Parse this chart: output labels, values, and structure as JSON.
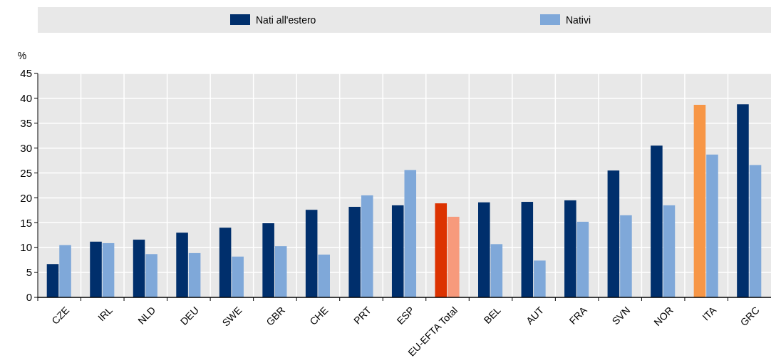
{
  "chart_data": {
    "type": "bar",
    "ylabel": "%",
    "categories": [
      "CZE",
      "IRL",
      "NLD",
      "DEU",
      "SWE",
      "GBR",
      "CHE",
      "PRT",
      "ESP",
      "EU-EFTA Total",
      "BEL",
      "AUT",
      "FRA",
      "SVN",
      "NOR",
      "ITA",
      "GRC"
    ],
    "series": [
      {
        "name": "Nati all'estero",
        "color": "#002f6c",
        "colors": [
          "#002f6c",
          "#002f6c",
          "#002f6c",
          "#002f6c",
          "#002f6c",
          "#002f6c",
          "#002f6c",
          "#002f6c",
          "#002f6c",
          "#dc3200",
          "#002f6c",
          "#002f6c",
          "#002f6c",
          "#002f6c",
          "#002f6c",
          "#f79646",
          "#002f6c"
        ],
        "values": [
          6.7,
          11.2,
          11.6,
          13.0,
          14.0,
          14.9,
          17.6,
          18.2,
          18.5,
          18.9,
          19.1,
          19.2,
          19.5,
          25.5,
          30.5,
          38.7,
          38.8
        ]
      },
      {
        "name": "Nativi",
        "color": "#7fa8d9",
        "colors": [
          "#7fa8d9",
          "#7fa8d9",
          "#7fa8d9",
          "#7fa8d9",
          "#7fa8d9",
          "#7fa8d9",
          "#7fa8d9",
          "#7fa8d9",
          "#7fa8d9",
          "#f79a7c",
          "#7fa8d9",
          "#7fa8d9",
          "#7fa8d9",
          "#7fa8d9",
          "#7fa8d9",
          "#7fa8d9",
          "#7fa8d9"
        ],
        "values": [
          10.5,
          10.9,
          8.7,
          8.9,
          8.2,
          10.3,
          8.6,
          20.5,
          25.6,
          16.2,
          10.7,
          7.4,
          15.2,
          16.5,
          18.5,
          28.7,
          26.6
        ]
      }
    ],
    "ylim": [
      0,
      45
    ],
    "yticks": [
      0,
      5,
      10,
      15,
      20,
      25,
      30,
      35,
      40,
      45
    ],
    "grid": true,
    "legend": "top"
  }
}
